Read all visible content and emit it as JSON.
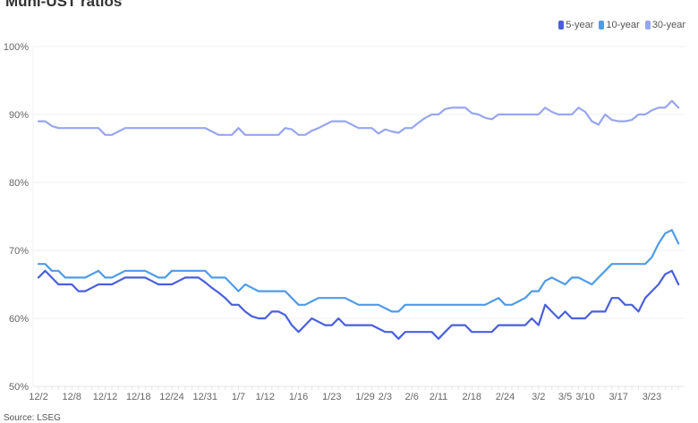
{
  "chart_data": {
    "type": "line",
    "title": "Muni-UST ratios",
    "source": "Source: LSEG",
    "ylim": [
      50,
      100
    ],
    "yticks": [
      "100%",
      "90%",
      "80%",
      "70%",
      "60%",
      "50%"
    ],
    "ytick_values": [
      100,
      90,
      80,
      70,
      60,
      50
    ],
    "grid": true,
    "legend_placement": "top-right",
    "x_labels": [
      {
        "label": "12/2",
        "index": 0
      },
      {
        "label": "12/8",
        "index": 5
      },
      {
        "label": "12/12",
        "index": 10
      },
      {
        "label": "12/18",
        "index": 15
      },
      {
        "label": "12/24",
        "index": 20
      },
      {
        "label": "12/31",
        "index": 25
      },
      {
        "label": "1/7",
        "index": 30
      },
      {
        "label": "1/12",
        "index": 34
      },
      {
        "label": "1/16",
        "index": 39
      },
      {
        "label": "1/23",
        "index": 44
      },
      {
        "label": "1/29",
        "index": 49
      },
      {
        "label": "2/3",
        "index": 52
      },
      {
        "label": "2/6",
        "index": 56
      },
      {
        "label": "2/11",
        "index": 60
      },
      {
        "label": "2/18",
        "index": 65
      },
      {
        "label": "2/24",
        "index": 70
      },
      {
        "label": "3/2",
        "index": 75
      },
      {
        "label": "3/5",
        "index": 79
      },
      {
        "label": "3/10",
        "index": 82
      },
      {
        "label": "3/17",
        "index": 87
      },
      {
        "label": "3/23",
        "index": 92
      }
    ],
    "series": [
      {
        "name": "5-year",
        "color": "#4a5fdc",
        "values": [
          66,
          67,
          66,
          65,
          65,
          65,
          64,
          64,
          64.5,
          65,
          65,
          65,
          65.5,
          66,
          66,
          66,
          66,
          65.5,
          65,
          65,
          65,
          65.5,
          66,
          66,
          66,
          65.3,
          64.5,
          63.8,
          63,
          62,
          62,
          61,
          60.3,
          60,
          60,
          61,
          61,
          60.5,
          59,
          58,
          59,
          60,
          59.5,
          59,
          59,
          60,
          59,
          59,
          59,
          59,
          59,
          58.5,
          58,
          58,
          57,
          58,
          58,
          58,
          58,
          58,
          57,
          58,
          59,
          59,
          59,
          58,
          58,
          58,
          58,
          59,
          59,
          59,
          59,
          59,
          60,
          59,
          62,
          61,
          60,
          61,
          60,
          60,
          60,
          61,
          61,
          61,
          63,
          63,
          62,
          62,
          61,
          63,
          64,
          65,
          66.5,
          67,
          65
        ]
      },
      {
        "name": "10-year",
        "color": "#4f9be8",
        "values": [
          68,
          68,
          67,
          67,
          66,
          66,
          66,
          66,
          66.5,
          67,
          66,
          66,
          66.5,
          67,
          67,
          67,
          67,
          66.5,
          66,
          66,
          67,
          67,
          67,
          67,
          67,
          67,
          66,
          66,
          66,
          65,
          64,
          65,
          64.5,
          64,
          64,
          64,
          64,
          64,
          63,
          62,
          62,
          62.5,
          63,
          63,
          63,
          63,
          63,
          62.5,
          62,
          62,
          62,
          62,
          61.5,
          61,
          61,
          62,
          62,
          62,
          62,
          62,
          62,
          62,
          62,
          62,
          62,
          62,
          62,
          62,
          62.5,
          63,
          62,
          62,
          62.5,
          63,
          64,
          64,
          65.5,
          66,
          65.5,
          65,
          66,
          66,
          65.5,
          65,
          66,
          67,
          68,
          68,
          68,
          68,
          68,
          68,
          69,
          71,
          72.5,
          73,
          71
        ]
      },
      {
        "name": "30-year",
        "color": "#98a6ee",
        "values": [
          89,
          89,
          88.3,
          88,
          88,
          88,
          88,
          88,
          88,
          88,
          87,
          87,
          87.5,
          88,
          88,
          88,
          88,
          88,
          88,
          88,
          88,
          88,
          88,
          88,
          88,
          88,
          87.5,
          87,
          87,
          87,
          88,
          87,
          87,
          87,
          87,
          87,
          87,
          88,
          87.8,
          87,
          87,
          87.6,
          88,
          88.5,
          89,
          89,
          89,
          88.5,
          88,
          88,
          88,
          87.2,
          87.8,
          87.5,
          87.3,
          88,
          88,
          88.8,
          89.5,
          90,
          90,
          90.8,
          91,
          91,
          91,
          90.2,
          90,
          89.5,
          89.3,
          90,
          90,
          90,
          90,
          90,
          90,
          90,
          91,
          90.4,
          90,
          90,
          90,
          91,
          90.4,
          89,
          88.5,
          90,
          89.2,
          89,
          89,
          89.2,
          90,
          90,
          90.6,
          91,
          91,
          92,
          91
        ]
      }
    ]
  }
}
